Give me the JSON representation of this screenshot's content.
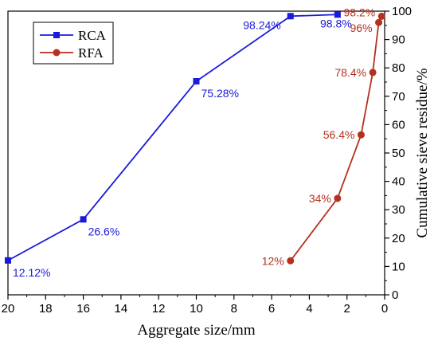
{
  "chart_data": {
    "type": "line",
    "xlabel": "Aggregate size/mm",
    "ylabel": "Cumulative sieve residue/%",
    "xlim": [
      20,
      0
    ],
    "ylim": [
      0,
      100
    ],
    "x_reversed": true,
    "x_ticks": [
      20,
      18,
      16,
      14,
      12,
      10,
      8,
      6,
      4,
      2,
      0
    ],
    "y_ticks": [
      0,
      10,
      20,
      30,
      40,
      50,
      60,
      70,
      80,
      90,
      100
    ],
    "y_axis_side": "right",
    "grid": false,
    "legend_position": "top-left",
    "series": [
      {
        "name": "RCA",
        "color": "#1a1adb",
        "marker": "square",
        "points": [
          {
            "x": 20,
            "y": 12.12,
            "label": "12.12%"
          },
          {
            "x": 16,
            "y": 26.6,
            "label": "26.6%"
          },
          {
            "x": 10,
            "y": 75.28,
            "label": "75.28%"
          },
          {
            "x": 5,
            "y": 98.24,
            "label": "98.24%"
          },
          {
            "x": 2.5,
            "y": 98.8,
            "label": "98.8%"
          }
        ]
      },
      {
        "name": "RFA",
        "color": "#b5311f",
        "marker": "circle",
        "points": [
          {
            "x": 5,
            "y": 12,
            "label": "12%"
          },
          {
            "x": 2.5,
            "y": 34,
            "label": "34%"
          },
          {
            "x": 1.25,
            "y": 56.4,
            "label": "56.4%"
          },
          {
            "x": 0.63,
            "y": 78.4,
            "label": "78.4%"
          },
          {
            "x": 0.315,
            "y": 96,
            "label": "96%"
          },
          {
            "x": 0.16,
            "y": 98.2,
            "label": "98.2%"
          }
        ]
      }
    ]
  }
}
